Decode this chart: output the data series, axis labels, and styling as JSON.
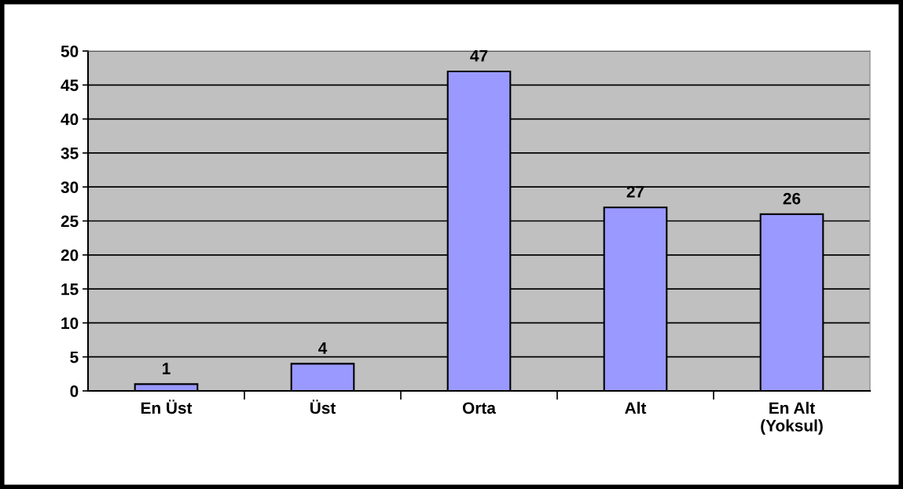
{
  "chart_data": {
    "type": "bar",
    "categories": [
      "En Üst",
      "Üst",
      "Orta",
      "Alt",
      "En Alt\n(Yoksul)"
    ],
    "values": [
      1,
      4,
      47,
      27,
      26
    ],
    "color": "#9999ff",
    "ylim": [
      0,
      50
    ],
    "yticks": [
      0,
      5,
      10,
      15,
      20,
      25,
      30,
      35,
      40,
      45,
      50
    ],
    "grid": "y",
    "data_labels": true
  }
}
